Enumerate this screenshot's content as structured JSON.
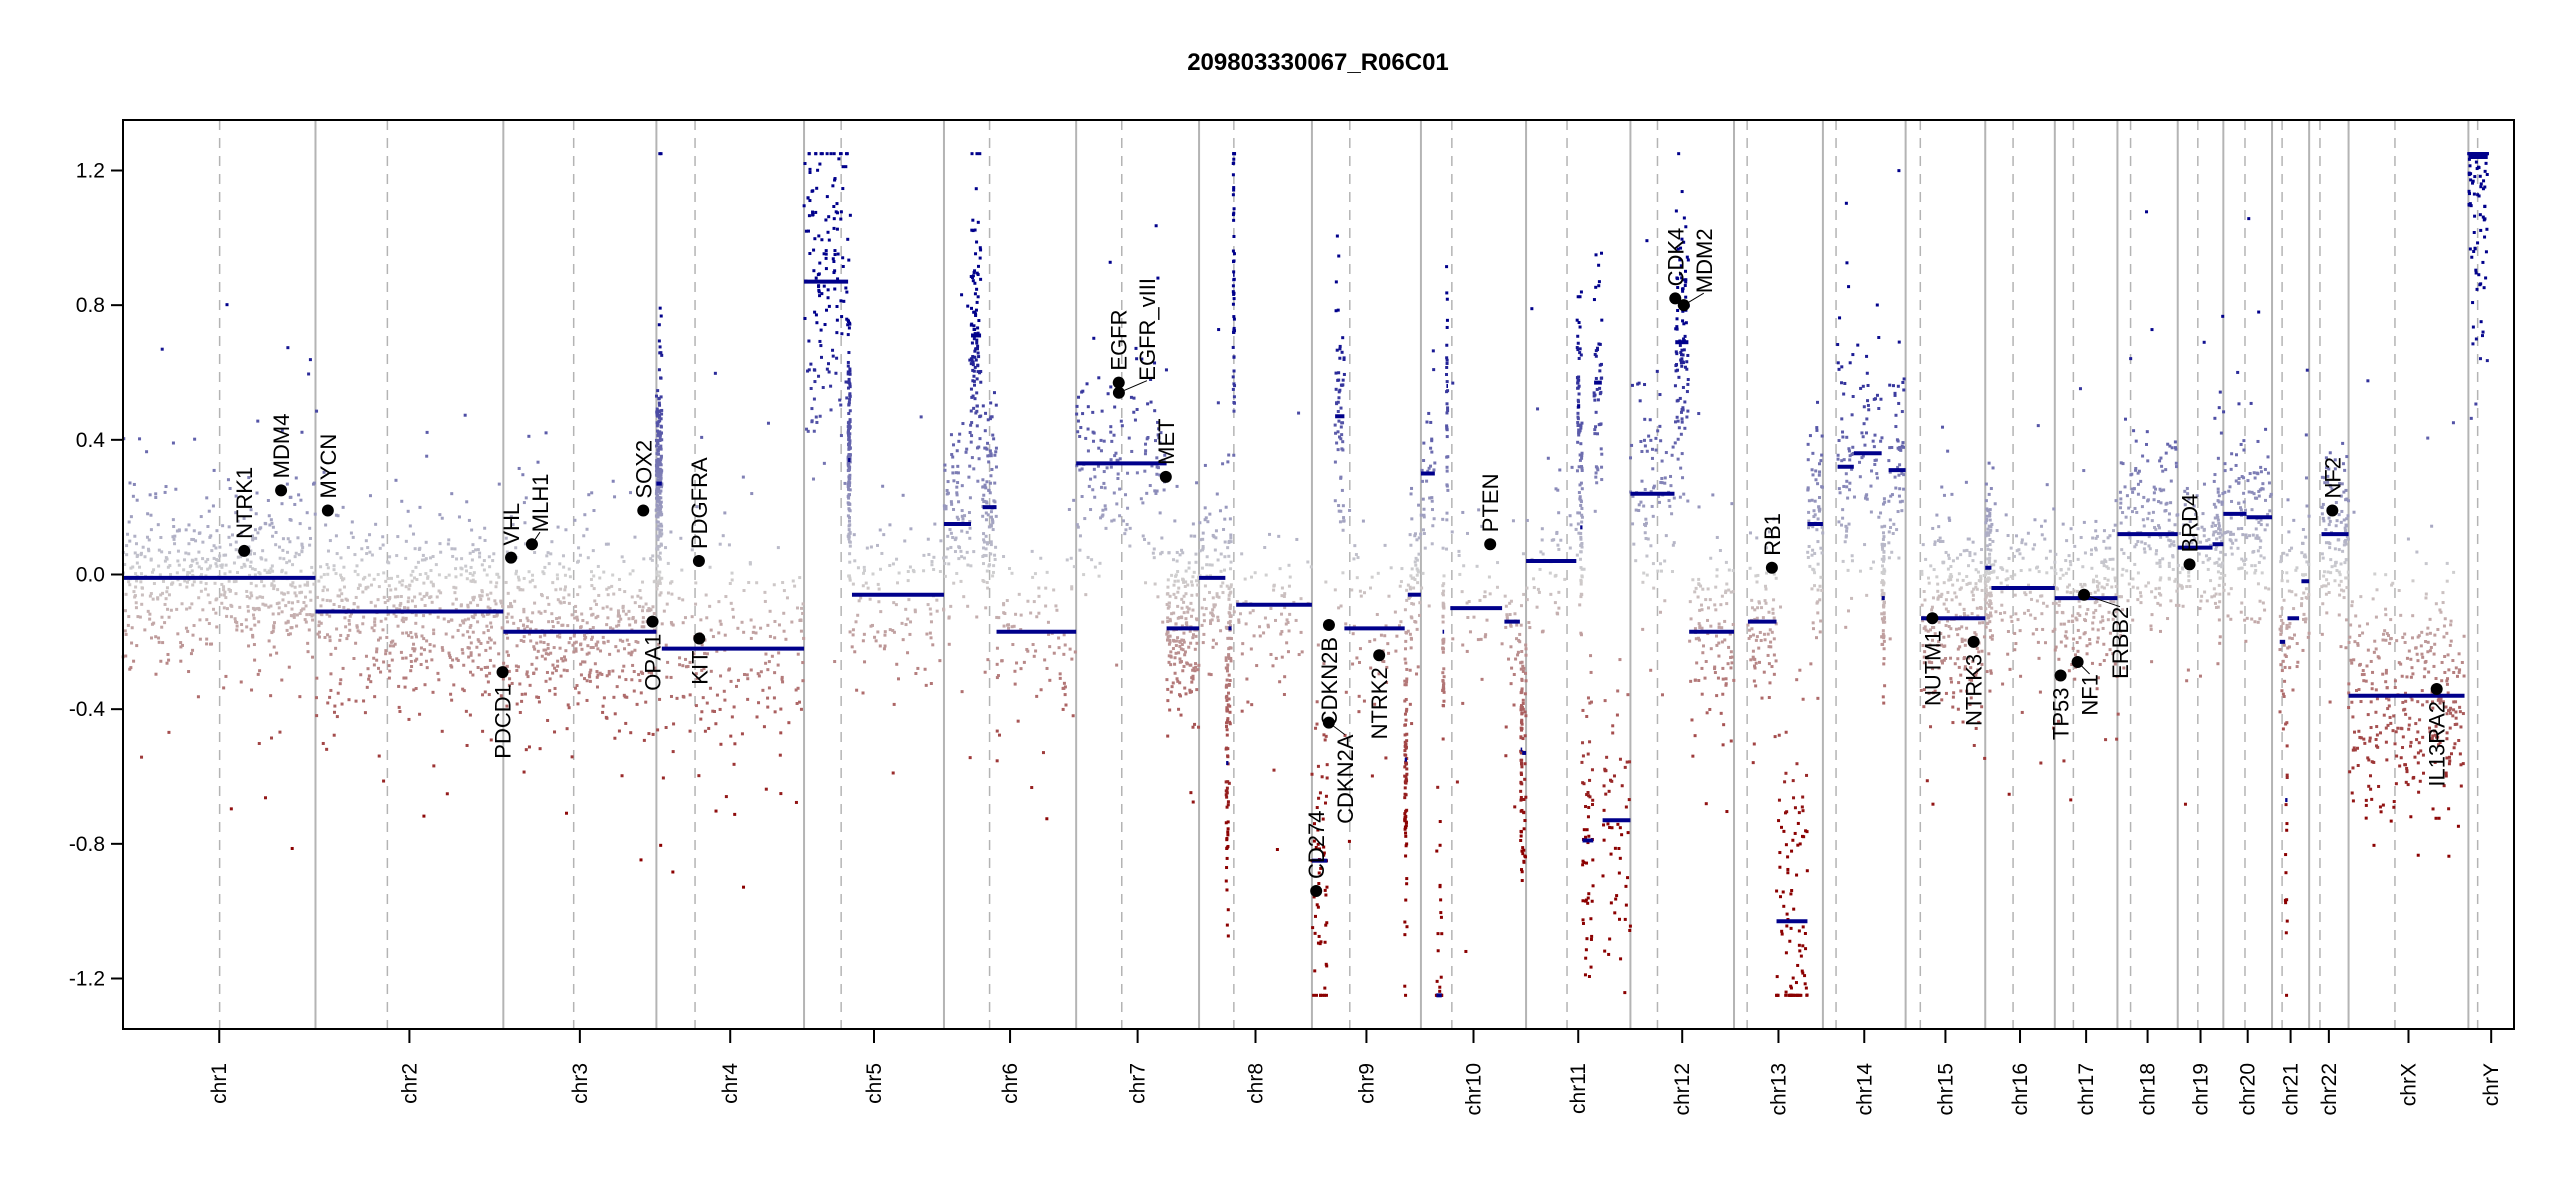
{
  "chart_data": {
    "type": "scatter",
    "title": "209803330067_R06C01",
    "xlabel": "",
    "ylabel": "",
    "ylim": [
      -1.35,
      1.35
    ],
    "yticks": [
      -1.2,
      -0.8,
      -0.4,
      0.0,
      0.4,
      0.8,
      1.2
    ],
    "ytick_labels": [
      "-1.2",
      "-0.8",
      "-0.4",
      "0.0",
      "0.4",
      "0.8",
      "1.2"
    ],
    "grid": false,
    "colors": {
      "gain": "#00008b",
      "loss": "#8b0000",
      "neutral": "#d0d0d0",
      "segment": "#00008b",
      "gene_dot": "#000000",
      "chrom_line": "#b4b4b4"
    },
    "chromosomes": [
      {
        "name": "chr1",
        "length_mb": 249,
        "centromere_mb": 125
      },
      {
        "name": "chr2",
        "length_mb": 243,
        "centromere_mb": 93
      },
      {
        "name": "chr3",
        "length_mb": 198,
        "centromere_mb": 91
      },
      {
        "name": "chr4",
        "length_mb": 191,
        "centromere_mb": 50
      },
      {
        "name": "chr5",
        "length_mb": 181,
        "centromere_mb": 48
      },
      {
        "name": "chr6",
        "length_mb": 171,
        "centromere_mb": 59
      },
      {
        "name": "chr7",
        "length_mb": 159,
        "centromere_mb": 59
      },
      {
        "name": "chr8",
        "length_mb": 146,
        "centromere_mb": 45
      },
      {
        "name": "chr9",
        "length_mb": 141,
        "centromere_mb": 49
      },
      {
        "name": "chr10",
        "length_mb": 136,
        "centromere_mb": 40
      },
      {
        "name": "chr11",
        "length_mb": 135,
        "centromere_mb": 53
      },
      {
        "name": "chr12",
        "length_mb": 134,
        "centromere_mb": 35
      },
      {
        "name": "chr13",
        "length_mb": 115,
        "centromere_mb": 17
      },
      {
        "name": "chr14",
        "length_mb": 107,
        "centromere_mb": 17
      },
      {
        "name": "chr15",
        "length_mb": 103,
        "centromere_mb": 19
      },
      {
        "name": "chr16",
        "length_mb": 90,
        "centromere_mb": 36
      },
      {
        "name": "chr17",
        "length_mb": 81,
        "centromere_mb": 24
      },
      {
        "name": "chr18",
        "length_mb": 78,
        "centromere_mb": 17
      },
      {
        "name": "chr19",
        "length_mb": 59,
        "centromere_mb": 26
      },
      {
        "name": "chr20",
        "length_mb": 63,
        "centromere_mb": 28
      },
      {
        "name": "chr21",
        "length_mb": 48,
        "centromere_mb": 13
      },
      {
        "name": "chr22",
        "length_mb": 51,
        "centromere_mb": 14
      },
      {
        "name": "chrX",
        "length_mb": 155,
        "centromere_mb": 60
      },
      {
        "name": "chrY",
        "length_mb": 59,
        "centromere_mb": 12
      }
    ],
    "segments": [
      {
        "chr": "chr1",
        "start": 0,
        "end": 249,
        "value": -0.01
      },
      {
        "chr": "chr2",
        "start": 0,
        "end": 243,
        "value": -0.11
      },
      {
        "chr": "chr3",
        "start": 0,
        "end": 198,
        "value": -0.17
      },
      {
        "chr": "chr4",
        "start": 0,
        "end": 7,
        "value": 0.27
      },
      {
        "chr": "chr4",
        "start": 7,
        "end": 191,
        "value": -0.22
      },
      {
        "chr": "chr5",
        "start": 0,
        "end": 57,
        "value": 0.87
      },
      {
        "chr": "chr5",
        "start": 57,
        "end": 60,
        "value": 0.34
      },
      {
        "chr": "chr5",
        "start": 62,
        "end": 181,
        "value": -0.06
      },
      {
        "chr": "chr6",
        "start": 0,
        "end": 35,
        "value": 0.15
      },
      {
        "chr": "chr6",
        "start": 35,
        "end": 48,
        "value": 0.71
      },
      {
        "chr": "chr6",
        "start": 50,
        "end": 68,
        "value": 0.2
      },
      {
        "chr": "chr6",
        "start": 68,
        "end": 171,
        "value": -0.17
      },
      {
        "chr": "chr7",
        "start": 0,
        "end": 117,
        "value": 0.33
      },
      {
        "chr": "chr7",
        "start": 117,
        "end": 159,
        "value": -0.16
      },
      {
        "chr": "chr8",
        "start": 0,
        "end": 34,
        "value": -0.01
      },
      {
        "chr": "chr8",
        "start": 35,
        "end": 38,
        "value": -0.56
      },
      {
        "chr": "chr8",
        "start": 38,
        "end": 42,
        "value": -0.16
      },
      {
        "chr": "chr8",
        "start": 44,
        "end": 46,
        "value": 0.89
      },
      {
        "chr": "chr8",
        "start": 48,
        "end": 146,
        "value": -0.09
      },
      {
        "chr": "chr9",
        "start": 0,
        "end": 20,
        "value": -0.85
      },
      {
        "chr": "chr9",
        "start": 30,
        "end": 42,
        "value": 0.47
      },
      {
        "chr": "chr9",
        "start": 42,
        "end": 120,
        "value": -0.16
      },
      {
        "chr": "chr9",
        "start": 120,
        "end": 123,
        "value": -0.55
      },
      {
        "chr": "chr9",
        "start": 124,
        "end": 141,
        "value": -0.06
      },
      {
        "chr": "chr10",
        "start": 0,
        "end": 18,
        "value": 0.3
      },
      {
        "chr": "chr10",
        "start": 20,
        "end": 27,
        "value": -1.25
      },
      {
        "chr": "chr10",
        "start": 28,
        "end": 30,
        "value": -0.17
      },
      {
        "chr": "chr10",
        "start": 33,
        "end": 35,
        "value": 0.56
      },
      {
        "chr": "chr10",
        "start": 38,
        "end": 105,
        "value": -0.1
      },
      {
        "chr": "chr10",
        "start": 108,
        "end": 128,
        "value": -0.14
      },
      {
        "chr": "chr10",
        "start": 129,
        "end": 131,
        "value": -0.52
      },
      {
        "chr": "chr10",
        "start": 131,
        "end": 136,
        "value": -0.53
      },
      {
        "chr": "chr11",
        "start": 0,
        "end": 65,
        "value": 0.04
      },
      {
        "chr": "chr11",
        "start": 66,
        "end": 70,
        "value": 0.5
      },
      {
        "chr": "chr11",
        "start": 70,
        "end": 73,
        "value": 0.14
      },
      {
        "chr": "chr11",
        "start": 73,
        "end": 87,
        "value": -0.79
      },
      {
        "chr": "chr11",
        "start": 88,
        "end": 98,
        "value": 0.57
      },
      {
        "chr": "chr11",
        "start": 99,
        "end": 135,
        "value": -0.73
      },
      {
        "chr": "chr12",
        "start": 0,
        "end": 57,
        "value": 0.24
      },
      {
        "chr": "chr12",
        "start": 58,
        "end": 75,
        "value": 0.69
      },
      {
        "chr": "chr12",
        "start": 76,
        "end": 134,
        "value": -0.17
      },
      {
        "chr": "chr13",
        "start": 18,
        "end": 55,
        "value": -0.14
      },
      {
        "chr": "chr13",
        "start": 55,
        "end": 95,
        "value": -1.03
      },
      {
        "chr": "chr13",
        "start": 95,
        "end": 115,
        "value": 0.15
      },
      {
        "chr": "chr14",
        "start": 19,
        "end": 40,
        "value": 0.32
      },
      {
        "chr": "chr14",
        "start": 40,
        "end": 76,
        "value": 0.36
      },
      {
        "chr": "chr14",
        "start": 76,
        "end": 80,
        "value": -0.07
      },
      {
        "chr": "chr14",
        "start": 85,
        "end": 107,
        "value": 0.31
      },
      {
        "chr": "chr15",
        "start": 20,
        "end": 103,
        "value": -0.13
      },
      {
        "chr": "chr16",
        "start": 0,
        "end": 8,
        "value": 0.02
      },
      {
        "chr": "chr16",
        "start": 8,
        "end": 90,
        "value": -0.04
      },
      {
        "chr": "chr17",
        "start": 0,
        "end": 81,
        "value": -0.07
      },
      {
        "chr": "chr18",
        "start": 0,
        "end": 78,
        "value": 0.12
      },
      {
        "chr": "chr19",
        "start": 0,
        "end": 45,
        "value": 0.08
      },
      {
        "chr": "chr19",
        "start": 45,
        "end": 59,
        "value": 0.09
      },
      {
        "chr": "chr20",
        "start": 0,
        "end": 30,
        "value": 0.18
      },
      {
        "chr": "chr20",
        "start": 30,
        "end": 63,
        "value": 0.17
      },
      {
        "chr": "chr21",
        "start": 10,
        "end": 17,
        "value": -0.2
      },
      {
        "chr": "chr21",
        "start": 17,
        "end": 20,
        "value": -0.67
      },
      {
        "chr": "chr21",
        "start": 20,
        "end": 35,
        "value": -0.13
      },
      {
        "chr": "chr21",
        "start": 38,
        "end": 48,
        "value": -0.02
      },
      {
        "chr": "chr22",
        "start": 16,
        "end": 51,
        "value": 0.12
      },
      {
        "chr": "chrX",
        "start": 0,
        "end": 150,
        "value": -0.36
      },
      {
        "chr": "chrY",
        "start": 0,
        "end": 25,
        "value": 1.24
      }
    ],
    "genes": [
      {
        "name": "NTRK1",
        "chr": "chr1",
        "pos_mb": 156.8,
        "value": 0.07,
        "label_pos": "above"
      },
      {
        "name": "MDM4",
        "chr": "chr1",
        "pos_mb": 204.5,
        "value": 0.25,
        "label_pos": "above"
      },
      {
        "name": "MYCN",
        "chr": "chr2",
        "pos_mb": 16,
        "value": 0.19,
        "label_pos": "above"
      },
      {
        "name": "PDCD1",
        "chr": "chr2",
        "pos_mb": 242,
        "value": -0.29,
        "label_pos": "below"
      },
      {
        "name": "VHL",
        "chr": "chr3",
        "pos_mb": 10,
        "value": 0.05,
        "label_pos": "above"
      },
      {
        "name": "MLH1",
        "chr": "chr3",
        "pos_mb": 37,
        "value": 0.09,
        "label_pos": "above"
      },
      {
        "name": "SOX2",
        "chr": "chr3",
        "pos_mb": 181,
        "value": 0.19,
        "label_pos": "above"
      },
      {
        "name": "OPA1",
        "chr": "chr3",
        "pos_mb": 193,
        "value": -0.14,
        "label_pos": "below"
      },
      {
        "name": "PDGFRA",
        "chr": "chr4",
        "pos_mb": 55,
        "value": 0.04,
        "label_pos": "above"
      },
      {
        "name": "KIT",
        "chr": "chr4",
        "pos_mb": 55.5,
        "value": -0.19,
        "label_pos": "below"
      },
      {
        "name": "EGFR",
        "chr": "chr7",
        "pos_mb": 55.1,
        "value": 0.57,
        "label_pos": "above"
      },
      {
        "name": "EGFR_vIII",
        "chr": "chr7",
        "pos_mb": 55.3,
        "value": 0.54,
        "label_pos": "above"
      },
      {
        "name": "MET",
        "chr": "chr7",
        "pos_mb": 116,
        "value": 0.29,
        "label_pos": "above"
      },
      {
        "name": "CD274",
        "chr": "chr9",
        "pos_mb": 5.5,
        "value": -0.94,
        "label_pos": "above"
      },
      {
        "name": "CDKN2A",
        "chr": "chr9",
        "pos_mb": 21.9,
        "value": -0.44,
        "label_pos": "below"
      },
      {
        "name": "CDKN2B",
        "chr": "chr9",
        "pos_mb": 22.0,
        "value": -0.15,
        "label_pos": "below"
      },
      {
        "name": "NTRK2",
        "chr": "chr9",
        "pos_mb": 87,
        "value": -0.24,
        "label_pos": "below"
      },
      {
        "name": "PTEN",
        "chr": "chr10",
        "pos_mb": 89.6,
        "value": 0.09,
        "label_pos": "above"
      },
      {
        "name": "CDK4",
        "chr": "chr12",
        "pos_mb": 58,
        "value": 0.82,
        "label_pos": "above"
      },
      {
        "name": "MDM2",
        "chr": "chr12",
        "pos_mb": 69,
        "value": 0.8,
        "label_pos": "above"
      },
      {
        "name": "RB1",
        "chr": "chr13",
        "pos_mb": 49,
        "value": 0.02,
        "label_pos": "above"
      },
      {
        "name": "NUTM1",
        "chr": "chr15",
        "pos_mb": 34.6,
        "value": -0.13,
        "label_pos": "below"
      },
      {
        "name": "NTRK3",
        "chr": "chr15",
        "pos_mb": 88,
        "value": -0.2,
        "label_pos": "below"
      },
      {
        "name": "TP53",
        "chr": "chr17",
        "pos_mb": 7.5,
        "value": -0.3,
        "label_pos": "below"
      },
      {
        "name": "NF1",
        "chr": "chr17",
        "pos_mb": 29.5,
        "value": -0.26,
        "label_pos": "below"
      },
      {
        "name": "ERBB2",
        "chr": "chr17",
        "pos_mb": 37.8,
        "value": -0.06,
        "label_pos": "below"
      },
      {
        "name": "BRD4",
        "chr": "chr19",
        "pos_mb": 15.3,
        "value": 0.03,
        "label_pos": "above"
      },
      {
        "name": "NF2",
        "chr": "chr22",
        "pos_mb": 30,
        "value": 0.19,
        "label_pos": "above"
      },
      {
        "name": "IL13RA2",
        "chr": "chrX",
        "pos_mb": 114,
        "value": -0.34,
        "label_pos": "below"
      }
    ]
  }
}
